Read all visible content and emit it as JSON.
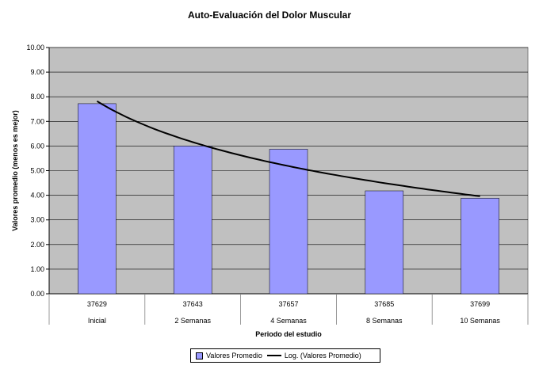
{
  "chart_data": {
    "type": "bar",
    "title": "Auto-Evaluación del Dolor Muscular",
    "xlabel": "Periodo del estudio",
    "ylabel": "Valores promedio (menos es mejor)",
    "ylim": [
      0,
      10
    ],
    "yticks": [
      "0.00",
      "1.00",
      "2.00",
      "3.00",
      "4.00",
      "5.00",
      "6.00",
      "7.00",
      "8.00",
      "9.00",
      "10.00"
    ],
    "categories": [
      {
        "code": "37629",
        "label": "Inicial"
      },
      {
        "code": "37643",
        "label": "2 Semanas"
      },
      {
        "code": "37657",
        "label": "4 Semanas"
      },
      {
        "code": "37685",
        "label": "8 Semanas"
      },
      {
        "code": "37699",
        "label": "10 Semanas"
      }
    ],
    "series": [
      {
        "name": "Valores Promedio",
        "values": [
          7.72,
          6.0,
          5.87,
          4.18,
          3.88
        ],
        "color": "#9999ff"
      },
      {
        "name": "Log. (Valores Promedio)",
        "type": "log-trendline",
        "values": [
          7.82,
          6.15,
          5.18,
          4.47,
          3.96
        ],
        "color": "#000000"
      }
    ],
    "grid": true,
    "plot_background": "#c0c0c0",
    "legend_position": "bottom"
  }
}
